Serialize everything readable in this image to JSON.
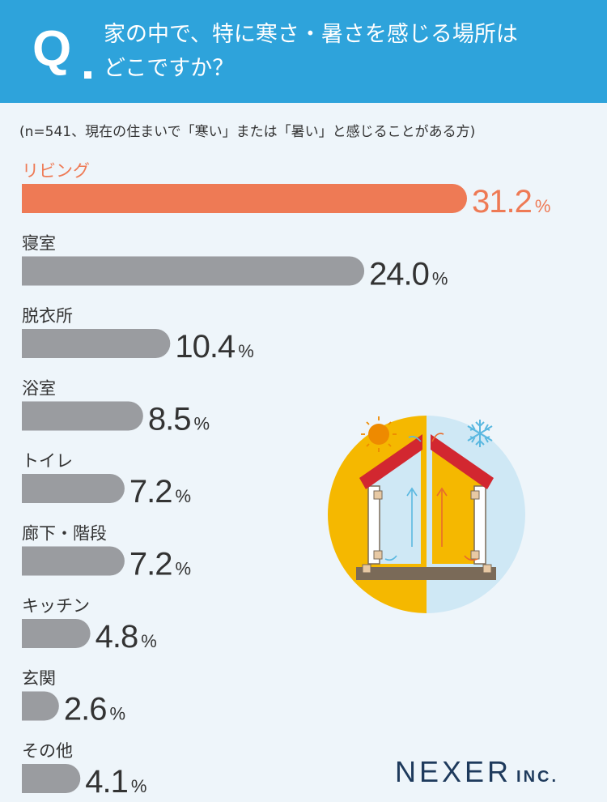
{
  "header": {
    "q_label": "Q",
    "title_line1": "家の中で、特に寒さ・暑さを感じる場所は",
    "title_line2": "どこですか？"
  },
  "note": "(n=541、現在の住まいで「寒い」または「暑い」と感じることがある方)",
  "chart_data": {
    "type": "bar",
    "orientation": "horizontal",
    "categories": [
      "リビング",
      "寝室",
      "脱衣所",
      "浴室",
      "トイレ",
      "廊下・階段",
      "キッチン",
      "玄関",
      "その他"
    ],
    "values": [
      31.2,
      24.0,
      10.4,
      8.5,
      7.2,
      7.2,
      4.8,
      2.6,
      4.1
    ],
    "value_labels": [
      "31.2",
      "24.0",
      "10.4",
      "8.5",
      "7.2",
      "7.2",
      "4.8",
      "2.6",
      "4.1"
    ],
    "unit": "%",
    "highlight_index": 0,
    "colors": {
      "highlight": "#ee7a55",
      "bar": "#9a9ca0",
      "label": "#333333",
      "highlight_label": "#ee7a55"
    }
  },
  "illustration": {
    "icons": [
      "house-icon",
      "sun-icon",
      "snowflake-icon"
    ],
    "colors": {
      "warm": "#f5b800",
      "cool": "#cfe8f5",
      "roof": "#d22730"
    }
  },
  "brand": {
    "main": "NEXER",
    "sub": "INC."
  }
}
